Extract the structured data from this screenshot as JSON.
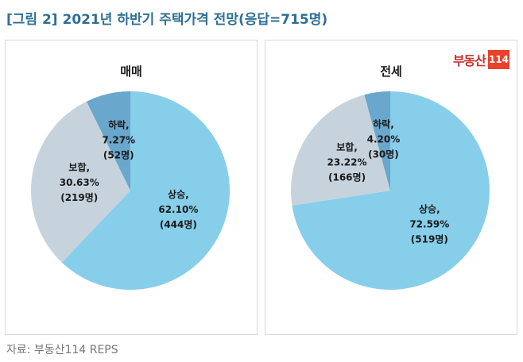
{
  "title": "[그림 2] 2021년 하반기 주택가격 전망(응답=715명)",
  "source": "자료: 부동산114 REPS",
  "logo": {
    "text": "부동산",
    "box": "114"
  },
  "chart_data": [
    {
      "type": "pie",
      "title": "매매",
      "slices": [
        {
          "label": "상승,",
          "percent_text": "62.10%",
          "count_text": "(444명)",
          "value": 62.1,
          "color": "#87ceeb"
        },
        {
          "label": "보합,",
          "percent_text": "30.63%",
          "count_text": "(219명)",
          "value": 30.63,
          "color": "#c7d3dc"
        },
        {
          "label": "하락,",
          "percent_text": "7.27%",
          "count_text": "(52명)",
          "value": 7.27,
          "color": "#69a7cd"
        }
      ]
    },
    {
      "type": "pie",
      "title": "전세",
      "slices": [
        {
          "label": "상승,",
          "percent_text": "72.59%",
          "count_text": "(519명)",
          "value": 72.59,
          "color": "#87ceeb"
        },
        {
          "label": "보합,",
          "percent_text": "23.22%",
          "count_text": "(166명)",
          "value": 23.22,
          "color": "#c7d3dc"
        },
        {
          "label": "하락,",
          "percent_text": "4.20%",
          "count_text": "(30명)",
          "value": 4.2,
          "color": "#69a7cd"
        }
      ]
    }
  ]
}
